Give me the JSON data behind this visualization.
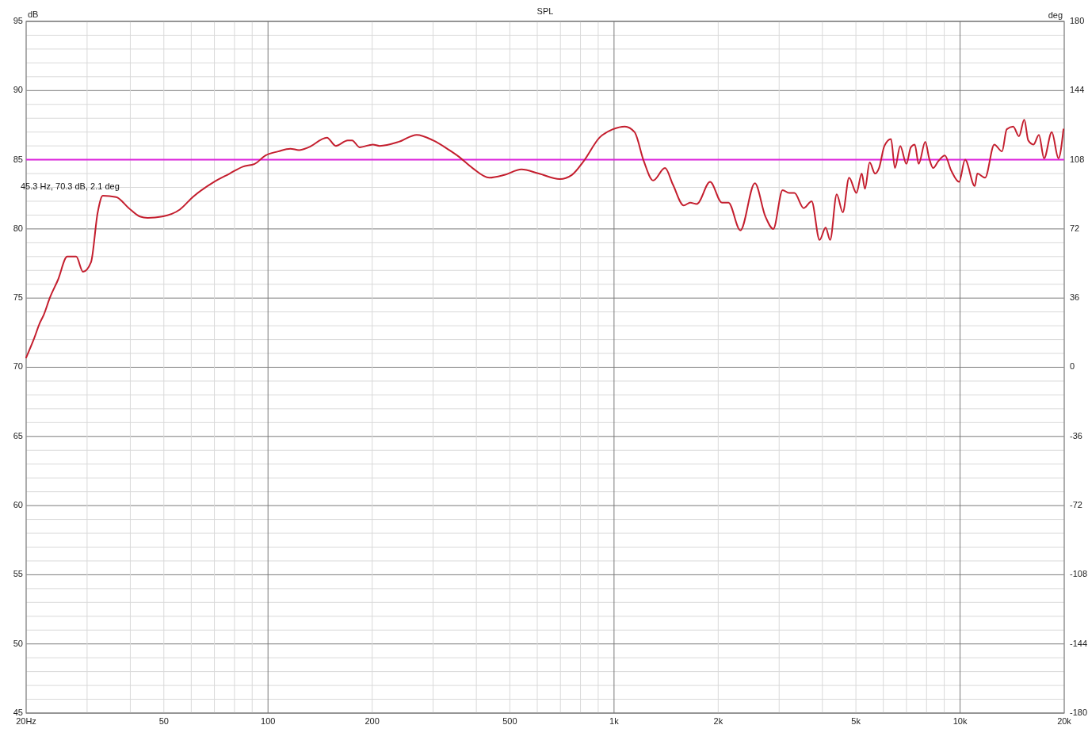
{
  "chart_data": {
    "type": "line",
    "title": "SPL",
    "ylabel": "dB",
    "y2label": "deg",
    "log": "x",
    "grid": true,
    "marker": "none",
    "line_style": "solid",
    "xlim": [
      20,
      20000
    ],
    "ylim": [
      45,
      95
    ],
    "y2lim": [
      -180,
      180
    ],
    "xticks": [
      {
        "value": 20,
        "label": "20Hz"
      },
      {
        "value": 30,
        "label": null
      },
      {
        "value": 40,
        "label": null
      },
      50,
      {
        "value": 60,
        "label": null
      },
      {
        "value": 70,
        "label": null
      },
      {
        "value": 80,
        "label": null
      },
      {
        "value": 90,
        "label": null
      },
      100,
      200,
      {
        "value": 300,
        "label": null
      },
      {
        "value": 400,
        "label": null
      },
      500,
      {
        "value": 600,
        "label": null
      },
      {
        "value": 700,
        "label": null
      },
      {
        "value": 800,
        "label": null
      },
      {
        "value": 900,
        "label": null
      },
      {
        "value": 1000,
        "label": "1k"
      },
      {
        "value": 2000,
        "label": "2k"
      },
      {
        "value": 3000,
        "label": null
      },
      {
        "value": 4000,
        "label": null
      },
      {
        "value": 5000,
        "label": "5k"
      },
      {
        "value": 6000,
        "label": null
      },
      {
        "value": 7000,
        "label": null
      },
      {
        "value": 8000,
        "label": null
      },
      {
        "value": 9000,
        "label": null
      },
      {
        "value": 10000,
        "label": "10k"
      },
      {
        "value": 20000,
        "label": "20k"
      }
    ],
    "yticks": [
      45,
      {
        "value": 46,
        "label": null
      },
      {
        "value": 47,
        "label": null
      },
      {
        "value": 48,
        "label": null
      },
      {
        "value": 49,
        "label": null
      },
      50,
      {
        "value": 51,
        "label": null
      },
      {
        "value": 52,
        "label": null
      },
      {
        "value": 53,
        "label": null
      },
      {
        "value": 54,
        "label": null
      },
      55,
      {
        "value": 56,
        "label": null
      },
      {
        "value": 57,
        "label": null
      },
      {
        "value": 58,
        "label": null
      },
      {
        "value": 59,
        "label": null
      },
      60,
      {
        "value": 61,
        "label": null
      },
      {
        "value": 62,
        "label": null
      },
      {
        "value": 63,
        "label": null
      },
      {
        "value": 64,
        "label": null
      },
      65,
      {
        "value": 66,
        "label": null
      },
      {
        "value": 67,
        "label": null
      },
      {
        "value": 68,
        "label": null
      },
      {
        "value": 69,
        "label": null
      },
      70,
      {
        "value": 71,
        "label": null
      },
      {
        "value": 72,
        "label": null
      },
      {
        "value": 73,
        "label": null
      },
      {
        "value": 74,
        "label": null
      },
      75,
      {
        "value": 76,
        "label": null
      },
      {
        "value": 77,
        "label": null
      },
      {
        "value": 78,
        "label": null
      },
      {
        "value": 79,
        "label": null
      },
      80,
      {
        "value": 81,
        "label": null
      },
      {
        "value": 82,
        "label": null
      },
      {
        "value": 83,
        "label": null
      },
      {
        "value": 84,
        "label": null
      },
      85,
      {
        "value": 86,
        "label": null
      },
      {
        "value": 87,
        "label": null
      },
      {
        "value": 88,
        "label": null
      },
      {
        "value": 89,
        "label": null
      },
      90,
      {
        "value": 91,
        "label": null
      },
      {
        "value": 92,
        "label": null
      },
      {
        "value": 93,
        "label": null
      },
      {
        "value": 94,
        "label": null
      },
      95
    ],
    "y2ticks": [
      -180,
      -144,
      -108,
      -72,
      -36,
      0,
      36,
      72,
      108,
      144,
      180
    ],
    "ref_lines": [
      {
        "axis": "y",
        "value": 85,
        "color": "#dd22dd"
      }
    ],
    "annotations": [
      "45.3 Hz, 70.3 dB, 2.1 deg"
    ],
    "series": [
      {
        "color": "#c41e2e",
        "x": [
          20,
          21.1,
          21.9,
          22.5,
          23.4,
          24.7,
          26.3,
          27.9,
          29.2,
          30.8,
          32.2,
          33.3,
          36.4,
          39.6,
          42.6,
          44.9,
          49.5,
          55.6,
          60.6,
          69.8,
          77.5,
          84.6,
          91.5,
          98.2,
          107,
          116,
          123,
          131,
          148,
          157,
          170,
          175,
          184,
          201,
          210,
          239,
          269,
          300,
          334,
          357,
          390,
          436,
          482,
          540,
          606,
          697,
          755,
          817,
          908,
          992,
          1075,
          1146,
          1219,
          1297,
          1404,
          1480,
          1590,
          1660,
          1734,
          1895,
          2050,
          2141,
          2318,
          2553,
          2737,
          2886,
          3070,
          3207,
          3322,
          3532,
          3724,
          3927,
          4088,
          4212,
          4401,
          4582,
          4779,
          5018,
          5198,
          5310,
          5480,
          5680,
          5832,
          6045,
          6316,
          6482,
          6717,
          6996,
          7206,
          7397,
          7593,
          7933,
          8142,
          8360,
          8654,
          9036,
          9435,
          9937,
          10340,
          11030,
          11220,
          11810,
          12560,
          13220,
          13640,
          14240,
          14800,
          15330,
          15740,
          16300,
          16900,
          17490,
          18410,
          19250,
          19900
        ],
        "values": [
          70.7,
          72.1,
          73.2,
          73.8,
          75.0,
          76.3,
          78.0,
          78.0,
          76.9,
          77.6,
          81.2,
          82.4,
          82.3,
          81.5,
          80.9,
          80.8,
          80.9,
          81.4,
          82.3,
          83.4,
          84.0,
          84.5,
          84.7,
          85.3,
          85.6,
          85.8,
          85.7,
          85.9,
          86.6,
          86.0,
          86.4,
          86.4,
          85.9,
          86.1,
          86.0,
          86.3,
          86.8,
          86.4,
          85.7,
          85.2,
          84.4,
          83.7,
          83.9,
          84.3,
          84.0,
          83.6,
          83.9,
          84.9,
          86.6,
          87.2,
          87.4,
          87.0,
          84.9,
          83.5,
          84.4,
          83.2,
          81.7,
          81.9,
          81.8,
          83.4,
          81.9,
          81.9,
          79.9,
          83.3,
          80.9,
          80.0,
          82.8,
          82.6,
          82.6,
          81.5,
          82.0,
          79.2,
          80.1,
          79.2,
          82.5,
          81.2,
          83.7,
          82.6,
          84.0,
          82.9,
          84.8,
          84.0,
          84.4,
          86.0,
          86.5,
          84.4,
          86.0,
          84.7,
          85.9,
          86.1,
          84.7,
          86.3,
          85.1,
          84.4,
          84.9,
          85.3,
          84.2,
          83.4,
          85.0,
          83.1,
          84.0,
          83.7,
          86.1,
          85.6,
          87.2,
          87.4,
          86.7,
          87.9,
          86.4,
          86.1,
          86.8,
          85.1,
          87.0,
          85.1,
          87.2
        ]
      }
    ]
  }
}
